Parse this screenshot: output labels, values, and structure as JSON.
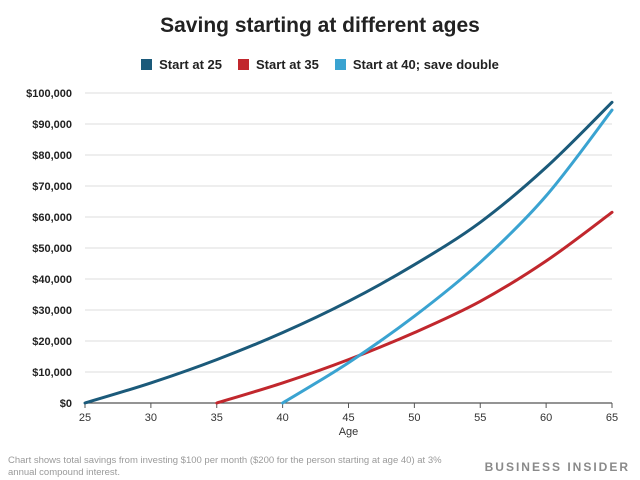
{
  "chart_data": {
    "type": "line",
    "title": "Saving starting at different ages",
    "xlabel": "Age",
    "ylabel": "",
    "xlim": [
      25,
      65
    ],
    "ylim": [
      0,
      100000
    ],
    "x_ticks": [
      "25",
      "30",
      "35",
      "40",
      "45",
      "50",
      "55",
      "60",
      "65"
    ],
    "x_tick_values": [
      25,
      30,
      35,
      40,
      45,
      50,
      55,
      60,
      65
    ],
    "y_ticks": [
      "$0",
      "$10,000",
      "$20,000",
      "$30,000",
      "$40,000",
      "$50,000",
      "$60,000",
      "$70,000",
      "$80,000",
      "$90,000",
      "$100,000"
    ],
    "y_tick_values": [
      0,
      10000,
      20000,
      30000,
      40000,
      50000,
      60000,
      70000,
      80000,
      90000,
      100000
    ],
    "grid": "horizontal",
    "legend_position": "top",
    "series": [
      {
        "name": "Start at 25",
        "color": "#1b5a7a",
        "x": [
          25,
          30,
          35,
          40,
          45,
          50,
          55,
          60,
          65
        ],
        "values": [
          0,
          6480,
          14000,
          22700,
          32800,
          44600,
          58300,
          76000,
          97000
        ]
      },
      {
        "name": "Start at 35",
        "color": "#c1272d",
        "x": [
          35,
          40,
          45,
          50,
          55,
          60,
          65
        ],
        "values": [
          0,
          6480,
          14000,
          22700,
          32800,
          45800,
          61500
        ]
      },
      {
        "name": "Start at 40; save double",
        "color": "#3aa3d1",
        "x": [
          40,
          45,
          50,
          55,
          60,
          65
        ],
        "values": [
          0,
          13000,
          28000,
          45400,
          66800,
          94500
        ]
      }
    ]
  },
  "footnote": "Chart shows total savings from investing $100 per month ($200 for the person starting at age 40) at 3% annual compound interest.",
  "brand": "BUSINESS INSIDER"
}
